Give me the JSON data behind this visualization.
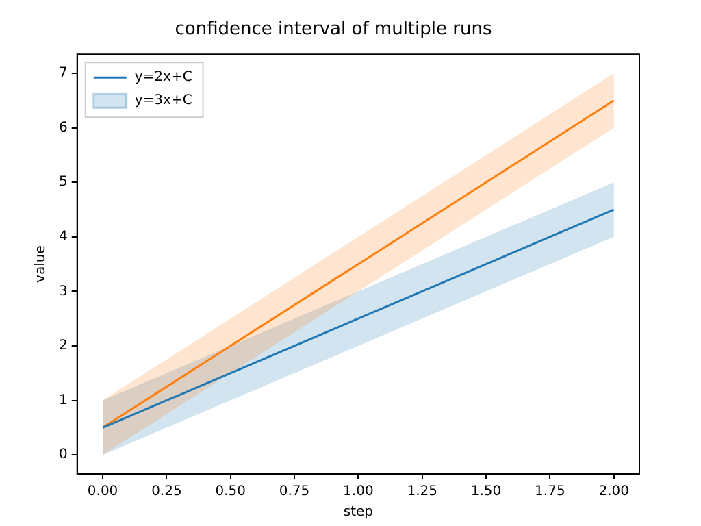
{
  "chart_data": {
    "type": "line",
    "title": "confidence interval of multiple runs",
    "xlabel": "step",
    "ylabel": "value",
    "x": [
      0,
      2
    ],
    "series": [
      {
        "name": "y=2x+C",
        "color": "#1f77b4",
        "values": [
          0.5,
          4.5
        ]
      },
      {
        "name": "y=3x+C",
        "color": "#1f77b4",
        "values": [
          null,
          null
        ],
        "lower": [
          0,
          4
        ],
        "upper": [
          1,
          5
        ]
      },
      {
        "color": "#ff7f0e",
        "values": [
          0.5,
          6.5
        ],
        "lower": [
          0,
          6
        ],
        "upper": [
          1,
          7
        ]
      }
    ],
    "xlim": [
      -0.1,
      2.1
    ],
    "xticks": [
      {
        "value": 0,
        "label": "0.00"
      },
      {
        "value": 0.25,
        "label": "0.25"
      },
      {
        "value": 0.5,
        "label": "0.50"
      },
      {
        "value": 0.75,
        "label": "0.75"
      },
      {
        "value": 1,
        "label": "1.00"
      },
      {
        "value": 1.25,
        "label": "1.25"
      },
      {
        "value": 1.5,
        "label": "1.50"
      },
      {
        "value": 1.75,
        "label": "1.75"
      },
      {
        "value": 2,
        "label": "2.00"
      }
    ],
    "ylim": [
      -0.35,
      7.35
    ],
    "yticks": [
      0,
      1,
      2,
      3,
      4,
      5,
      6,
      7
    ],
    "legend": "top left",
    "grid": false
  }
}
